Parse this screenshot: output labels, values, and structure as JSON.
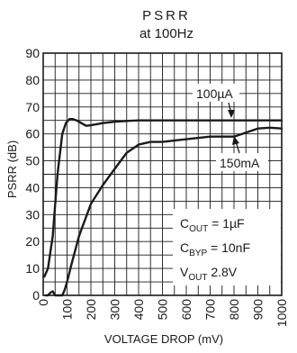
{
  "chart_data": {
    "type": "line",
    "title": "PSRR",
    "subtitle": "at 100Hz",
    "xlabel": "VOLTAGE DROP (mV)",
    "ylabel": "PSRR (dB)",
    "xlim": [
      0,
      1000
    ],
    "ylim": [
      0,
      90
    ],
    "x_ticks": [
      0,
      100,
      200,
      300,
      400,
      500,
      600,
      700,
      800,
      900,
      1000
    ],
    "y_ticks": [
      0,
      10,
      20,
      30,
      40,
      50,
      60,
      70,
      80,
      90
    ],
    "grid": true,
    "series": [
      {
        "name": "100µA",
        "x": [
          5,
          20,
          40,
          60,
          80,
          95,
          110,
          125,
          140,
          160,
          180,
          200,
          250,
          300,
          350,
          400,
          450,
          500,
          600,
          700,
          800,
          900,
          1000
        ],
        "y": [
          7,
          10,
          22,
          45,
          60,
          64,
          65.5,
          65.5,
          65,
          64,
          63,
          63.2,
          64,
          64.5,
          64.8,
          65,
          65,
          65,
          65,
          65,
          65,
          65,
          65
        ]
      },
      {
        "name": "150mA",
        "x": [
          10,
          20,
          30,
          40,
          50,
          60,
          70,
          80,
          90,
          100,
          120,
          150,
          200,
          250,
          300,
          350,
          400,
          450,
          500,
          600,
          700,
          750,
          800,
          850,
          900,
          950,
          1000
        ],
        "y": [
          0,
          0,
          1,
          1.5,
          0,
          0,
          0,
          0,
          2,
          5,
          12,
          22,
          34,
          41,
          47,
          53,
          56,
          57,
          57,
          58,
          59,
          59,
          59,
          60.5,
          62,
          62.3,
          62
        ]
      }
    ],
    "annotations": {
      "cout_label": "C",
      "cout_sub": "OUT",
      "cout_value": " = 1µF",
      "cbyp_label": "C",
      "cbyp_sub": "BYP",
      "cbyp_value": " = 10nF",
      "vout_label": "V",
      "vout_sub": "OUT",
      "vout_value": " 2.8V"
    },
    "colors": {
      "line": "#1a1a1a",
      "grid": "#1a1a1a",
      "background": "#ffffff"
    }
  }
}
